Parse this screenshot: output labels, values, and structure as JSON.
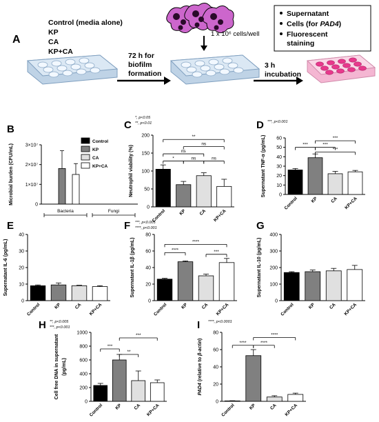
{
  "schematic": {
    "panel_label": "A",
    "conditions": [
      "Control (media alone)",
      "KP",
      "CA",
      "KP+CA"
    ],
    "cells_text": "1 x 10⁶ cells/well",
    "step1": [
      "72 h for",
      "biofilm",
      "formation"
    ],
    "step2": [
      "3 h",
      "incubation"
    ],
    "outputs": [
      {
        "pre": "Supernatant",
        "em": "",
        "post": ""
      },
      {
        "pre": "Cells (for ",
        "em": "PAD4",
        "post": ")"
      },
      {
        "pre": "Fluorescent",
        "em": "",
        "post": ""
      },
      {
        "pre": "staining",
        "em": "",
        "post": ""
      }
    ]
  },
  "colors": {
    "Control": "#000000",
    "KP": "#808080",
    "CA": "#e0e0e0",
    "KP+CA": "#ffffff",
    "plate_pink": "#e8388c"
  },
  "chart_data": [
    {
      "panel": "B",
      "type": "bar",
      "ylabel": "Microbial burden (CFU/mL)",
      "yticks": [
        "0",
        "1×10⁷",
        "2×10⁷",
        "3×10⁷"
      ],
      "ylim": [
        0,
        30000000
      ],
      "groups": [
        "Bacteria",
        "Fungi"
      ],
      "series": [
        {
          "name": "Control",
          "values": [
            0,
            0
          ],
          "err": [
            0,
            0
          ]
        },
        {
          "name": "KP",
          "values": [
            18000000,
            0
          ],
          "err": [
            9000000,
            0
          ]
        },
        {
          "name": "CA",
          "values": [
            0,
            0
          ],
          "err": [
            0,
            0
          ]
        },
        {
          "name": "KP+CA",
          "values": [
            15000000,
            0
          ],
          "err": [
            5500000,
            0
          ]
        }
      ],
      "legend": [
        "Control",
        "KP",
        "CA",
        "KP+CA"
      ]
    },
    {
      "panel": "C",
      "type": "bar",
      "ylabel": "Neutrophil viability (%)",
      "yticks": [
        "0",
        "50",
        "100",
        "150",
        "200"
      ],
      "ylim": [
        0,
        200
      ],
      "categories": [
        "Control",
        "KP",
        "CA",
        "KP+CA"
      ],
      "values": [
        105,
        62,
        87,
        57
      ],
      "err": [
        12,
        9,
        8,
        20
      ],
      "annotation_lines": [
        "*, p<0.05",
        "**, p<0.01"
      ],
      "sig": [
        {
          "a": 0,
          "b": 3,
          "y": 188,
          "label": "**"
        },
        {
          "a": 1,
          "b": 3,
          "y": 168,
          "label": "ns"
        },
        {
          "a": 0,
          "b": 2,
          "y": 148,
          "label": "ns"
        },
        {
          "a": 1,
          "b": 2,
          "y": 128,
          "label": "ns"
        },
        {
          "a": 0,
          "b": 1,
          "y": 128,
          "label": "*"
        },
        {
          "a": 2,
          "b": 3,
          "y": 128,
          "label": "ns"
        }
      ]
    },
    {
      "panel": "D",
      "type": "bar",
      "ylabel": "Supernatant TNF-α (pg/mL)",
      "yticks": [
        "0",
        "10",
        "20",
        "30",
        "40",
        "50",
        "60"
      ],
      "ylim": [
        0,
        60
      ],
      "categories": [
        "Control",
        "KP",
        "CA",
        "KP+CA"
      ],
      "values": [
        26,
        39,
        22,
        24
      ],
      "err": [
        1.5,
        4,
        2.5,
        1.5
      ],
      "annotation_lines": [
        "***, p<0.001"
      ],
      "sig": [
        {
          "a": 1,
          "b": 3,
          "y": 57,
          "label": "***"
        },
        {
          "a": 0,
          "b": 1,
          "y": 50,
          "label": "***"
        },
        {
          "a": 1,
          "b": 2,
          "y": 50,
          "label": "***"
        },
        {
          "a": 1,
          "b": 3,
          "y": 45,
          "label": "***"
        }
      ]
    },
    {
      "panel": "E",
      "type": "bar",
      "ylabel": "Supernatant IL-6 (pg/mL)",
      "yticks": [
        "0",
        "10",
        "20",
        "30",
        "40"
      ],
      "ylim": [
        0,
        40
      ],
      "categories": [
        "Control",
        "KP",
        "CA",
        "KP+CA"
      ],
      "values": [
        9,
        9.5,
        9,
        8.5
      ],
      "err": [
        0.5,
        1.2,
        0.3,
        0.5
      ],
      "annotation_lines": [],
      "sig": []
    },
    {
      "panel": "F",
      "type": "bar",
      "ylabel": "Supernatant IL-1β (pg/mL)",
      "yticks": [
        "0",
        "20",
        "40",
        "60",
        "80"
      ],
      "ylim": [
        0,
        80
      ],
      "categories": [
        "Control",
        "KP",
        "CA",
        "KP+CA"
      ],
      "values": [
        26,
        47,
        30,
        46
      ],
      "err": [
        1,
        1,
        2,
        5
      ],
      "annotation_lines": [
        "***, p<0.005",
        "****, p<0.001"
      ],
      "sig": [
        {
          "a": 0,
          "b": 3,
          "y": 68,
          "label": "****"
        },
        {
          "a": 0,
          "b": 1,
          "y": 58,
          "label": "****"
        },
        {
          "a": 2,
          "b": 3,
          "y": 56,
          "label": "***"
        }
      ]
    },
    {
      "panel": "G",
      "type": "bar",
      "ylabel": "Supernatant IL-10 (pg/mL)",
      "yticks": [
        "0",
        "100",
        "200",
        "300",
        "400"
      ],
      "ylim": [
        0,
        400
      ],
      "categories": [
        "Control",
        "KP",
        "CA",
        "KP+CA"
      ],
      "values": [
        170,
        175,
        180,
        188
      ],
      "err": [
        5,
        10,
        15,
        25
      ],
      "annotation_lines": [],
      "sig": []
    },
    {
      "panel": "H",
      "type": "bar",
      "ylabel": "Cell free DNA in supernatant (pg/mL)",
      "yticks": [
        "0",
        "200",
        "400",
        "600",
        "800",
        "1000"
      ],
      "ylim": [
        0,
        1000
      ],
      "categories": [
        "Control",
        "KP",
        "CA",
        "KP+CA"
      ],
      "values": [
        230,
        600,
        300,
        270
      ],
      "err": [
        30,
        80,
        140,
        40
      ],
      "annotation_lines": [
        "**, p<0.005",
        "***, p<0.001"
      ],
      "sig": [
        {
          "a": 1,
          "b": 3,
          "y": 920,
          "label": "***"
        },
        {
          "a": 0,
          "b": 1,
          "y": 760,
          "label": "***"
        },
        {
          "a": 1,
          "b": 2,
          "y": 680,
          "label": "**"
        }
      ]
    },
    {
      "panel": "I",
      "type": "bar",
      "ylabel_em": "PAD4",
      "ylabel_rest": " (relative to ",
      "ylabel_em2": "β-actin",
      "ylabel_end": ")",
      "yticks": [
        "0",
        "20",
        "40",
        "60",
        "80"
      ],
      "ylim": [
        0,
        80
      ],
      "categories": [
        "Control",
        "KP",
        "CA",
        "KP+CA"
      ],
      "values": [
        0.5,
        53,
        5,
        8
      ],
      "err": [
        0.2,
        7,
        1.5,
        1.5
      ],
      "annotation_lines": [
        "****, p<0.0001"
      ],
      "sig": [
        {
          "a": 1,
          "b": 3,
          "y": 74,
          "label": "****"
        },
        {
          "a": 0,
          "b": 1,
          "y": 65,
          "label": "****"
        },
        {
          "a": 1,
          "b": 2,
          "y": 65,
          "label": "****"
        }
      ]
    }
  ]
}
